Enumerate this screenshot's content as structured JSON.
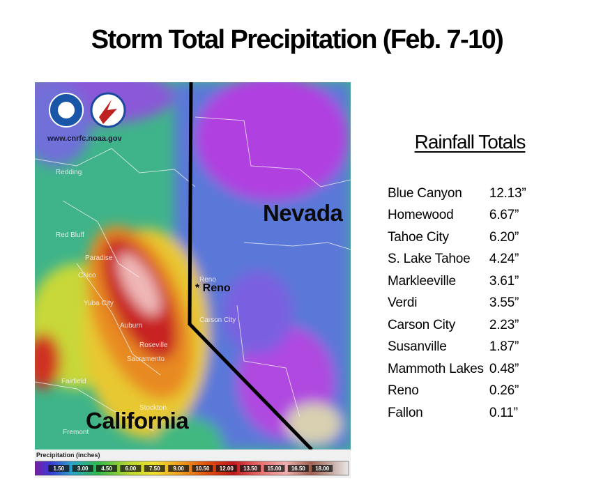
{
  "title": "Storm Total Precipitation (Feb. 7-10)",
  "map": {
    "source": "www.cnrfc.noaa.gov",
    "labels": [
      "Nevada",
      "California",
      "* Reno"
    ],
    "places": [
      "Redding",
      "Red Bluff",
      "Paradise",
      "Chico",
      "Yuba City",
      "Auburn",
      "Roseville",
      "Sacramento",
      "Fairfield",
      "Stockton",
      "Fremont",
      "Reno",
      "Carson City"
    ],
    "legend": {
      "title": "Precipitation (inches)",
      "labels": [
        "1.50",
        "3.00",
        "4.50",
        "6.00",
        "7.50",
        "9.00",
        "10.50",
        "12.00",
        "13.50",
        "15.00",
        "16.50",
        "18.00"
      ]
    }
  },
  "totals": {
    "heading": "Rainfall Totals",
    "rows": [
      [
        "Blue Canyon",
        "12.13”"
      ],
      [
        "Homewood",
        "6.67”"
      ],
      [
        "Tahoe City",
        "6.20”"
      ],
      [
        "S. Lake Tahoe",
        "4.24”"
      ],
      [
        "Markleeville",
        "3.61”"
      ],
      [
        "Verdi",
        "3.55”"
      ],
      [
        "Carson City",
        "2.23”"
      ],
      [
        "Susanville",
        "1.87”"
      ],
      [
        "Mammoth Lakes",
        "0.48”"
      ],
      [
        "Reno",
        "0.26”"
      ],
      [
        "Fallon",
        "0.11”"
      ]
    ]
  }
}
